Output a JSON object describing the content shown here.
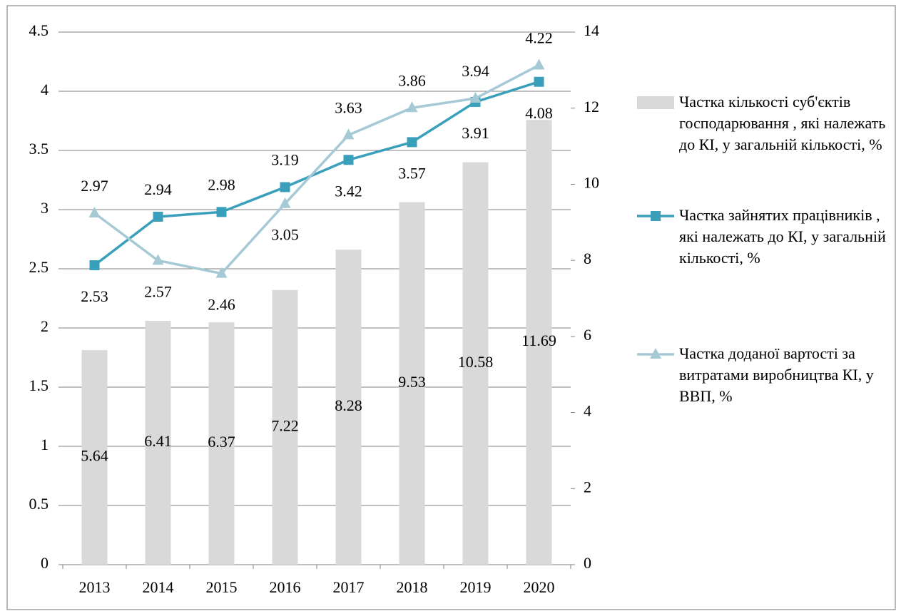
{
  "chart_data": {
    "type": "bar-line",
    "categories": [
      "2013",
      "2014",
      "2015",
      "2016",
      "2017",
      "2018",
      "2019",
      "2020"
    ],
    "series": [
      {
        "name": "Частка кількості суб'єктів господарювання , які належать до КІ, у загальній кількості, %",
        "type": "bar",
        "axis": "y2",
        "color": "#d9d9d9",
        "values": [
          5.64,
          6.41,
          6.37,
          7.22,
          8.28,
          9.53,
          10.58,
          11.69
        ]
      },
      {
        "name": "Частка зайнятих працівників , які належать до КІ, у загальній кількості, %",
        "type": "line",
        "marker": "square",
        "color": "#3a9fba",
        "values": [
          2.53,
          2.94,
          2.98,
          3.19,
          3.42,
          3.57,
          3.91,
          4.08
        ]
      },
      {
        "name": "Частка доданої вартості за витратами виробництва КІ, у ВВП, %",
        "type": "line",
        "marker": "triangle",
        "color": "#a6c9d6",
        "values": [
          2.97,
          2.57,
          2.46,
          3.05,
          3.63,
          3.86,
          3.94,
          4.22
        ]
      }
    ],
    "ylim": [
      0,
      4.5
    ],
    "yticks": [
      0,
      0.5,
      1,
      1.5,
      2,
      2.5,
      3,
      3.5,
      4,
      4.5
    ],
    "y2lim": [
      0,
      14
    ],
    "y2ticks": [
      0,
      2,
      4,
      6,
      8,
      10,
      12,
      14
    ],
    "grid": true,
    "legend": "right"
  }
}
